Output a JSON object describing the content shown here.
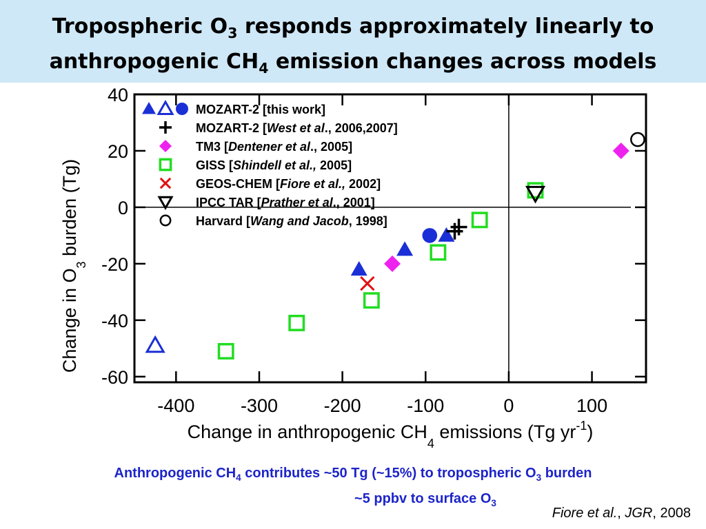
{
  "title": {
    "line1_a": "Tropospheric O",
    "line1_sub": "3",
    "line1_b": " responds approximately linearly to",
    "line2_a": "anthropogenic CH",
    "line2_sub": "4",
    "line2_b": " emission changes across models"
  },
  "caption": {
    "line1_a": "Anthropogenic CH",
    "line1_sub1": "4",
    "line1_b": " contributes ~50 Tg (~15%) to tropospheric O",
    "line1_sub2": "3",
    "line1_c": " burden",
    "line2_a": "~5 ppbv to surface O",
    "line2_sub": "3"
  },
  "citation": {
    "authors": "Fiore et al.",
    "sep1": ", ",
    "journal": "JGR",
    "sep2": ", ",
    "year": "2008"
  },
  "chart_data": {
    "type": "scatter",
    "xlabel": {
      "text": "Change in anthropogenic CH",
      "sub": "4",
      "rest": " emissions (Tg yr",
      "sup": "-1",
      "end": ")"
    },
    "ylabel": {
      "text": "Change in O",
      "sub": "3",
      "rest": " burden (Tg)"
    },
    "xlim": [
      -450,
      165
    ],
    "ylim": [
      -62,
      40
    ],
    "xticks": [
      -400,
      -300,
      -200,
      -100,
      0,
      100
    ],
    "yticks": [
      40,
      20,
      0,
      -20,
      -40,
      -60
    ],
    "grid": false,
    "reference_lines": {
      "x": 0,
      "y": 0
    },
    "legend_position": "top-left",
    "legend": [
      {
        "label_parts": [
          "MOZART-2 [this work]"
        ],
        "italic_index": -1,
        "markers": [
          "triangle-filled",
          "triangle-open",
          "circle-filled"
        ],
        "color": "#1a2fd6"
      },
      {
        "label_parts": [
          "MOZART-2 [",
          "West et al",
          "., 2006,2007]"
        ],
        "italic_index": 1,
        "markers": [
          "plus"
        ],
        "color": "#000000"
      },
      {
        "label_parts": [
          "TM3 [",
          "Dentener et al",
          "., 2005]"
        ],
        "italic_index": 1,
        "markers": [
          "diamond"
        ],
        "color": "#ee22ee"
      },
      {
        "label_parts": [
          "GISS [",
          "Shindell et al.,",
          " 2005]"
        ],
        "italic_index": 1,
        "markers": [
          "square-open"
        ],
        "color": "#22dd22"
      },
      {
        "label_parts": [
          "GEOS-CHEM [",
          "Fiore et al.,",
          " 2002]"
        ],
        "italic_index": 1,
        "markers": [
          "x"
        ],
        "color": "#e01010"
      },
      {
        "label_parts": [
          "IPCC TAR [",
          "Prather et al",
          "., 2001]"
        ],
        "italic_index": 1,
        "markers": [
          "triangle-down-open"
        ],
        "color": "#000000"
      },
      {
        "label_parts": [
          "Harvard [",
          "Wang and Jacob",
          ", 1998]"
        ],
        "italic_index": 1,
        "markers": [
          "circle-open"
        ],
        "color": "#000000"
      }
    ],
    "series": [
      {
        "name": "MOZART-2 [this work]",
        "marker": "triangle-filled",
        "color": "#1a2fd6",
        "points": [
          [
            -180,
            -22
          ],
          [
            -125,
            -15
          ],
          [
            -75,
            -10
          ]
        ]
      },
      {
        "name": "MOZART-2 [this work]",
        "marker": "triangle-open",
        "color": "#1a2fd6",
        "points": [
          [
            -425,
            -49
          ]
        ]
      },
      {
        "name": "MOZART-2 [this work]",
        "marker": "circle-filled",
        "color": "#1a2fd6",
        "points": [
          [
            -95,
            -10
          ]
        ]
      },
      {
        "name": "MOZART-2 [West et al., 2006,2007]",
        "marker": "plus",
        "color": "#000000",
        "points": [
          [
            -60,
            -7
          ],
          [
            -65,
            -8.5
          ]
        ]
      },
      {
        "name": "TM3 [Dentener et al., 2005]",
        "marker": "diamond",
        "color": "#ee22ee",
        "points": [
          [
            -140,
            -20
          ],
          [
            135,
            20
          ]
        ]
      },
      {
        "name": "GISS [Shindell et al., 2005]",
        "marker": "square-open",
        "color": "#22dd22",
        "points": [
          [
            -340,
            -51
          ],
          [
            -255,
            -41
          ],
          [
            -165,
            -33
          ],
          [
            -85,
            -16
          ],
          [
            -35,
            -4.5
          ],
          [
            32,
            6
          ]
        ]
      },
      {
        "name": "GEOS-CHEM [Fiore et al., 2002]",
        "marker": "x",
        "color": "#e01010",
        "points": [
          [
            -170,
            -27
          ]
        ]
      },
      {
        "name": "IPCC TAR [Prather et al., 2001]",
        "marker": "triangle-down-open",
        "color": "#000000",
        "points": [
          [
            32,
            5
          ]
        ]
      },
      {
        "name": "Harvard [Wang and Jacob, 1998]",
        "marker": "circle-open",
        "color": "#000000",
        "points": [
          [
            155,
            24
          ]
        ]
      }
    ]
  }
}
